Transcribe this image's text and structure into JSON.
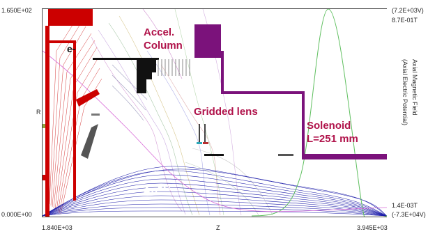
{
  "axes": {
    "y_top": "1.650E+02",
    "y_bottom": "0.000E+00",
    "y_label": "R",
    "x_left": "1.840E+03",
    "x_right": "3.945E+03",
    "x_label": "Z",
    "right_top_1": "(7.2E+03V)",
    "right_top_2": "8.7E-01T",
    "right_bottom_1": "1.4E-03T",
    "right_bottom_2": "(-7.3E+04V)",
    "right_vertical_1": "Axial Magnetic Field",
    "right_vertical_2": "(Axial Electric Potential)"
  },
  "annotations": {
    "electron": "e-",
    "accel_line1": "Accel.",
    "accel_line2": "Column",
    "gridded_lens": "Gridded lens",
    "solenoid_line1": "Solenoid",
    "solenoid_line2": "L=251 mm",
    "ion_base": "Au",
    "ion_charge": "+32"
  },
  "colors": {
    "electrode_red": "#cc0000",
    "solenoid_purple": "#7b127b",
    "ion_beam_blue": "#1a1aa8",
    "field_green": "#5fbf5f",
    "annotation": "#b0124a"
  }
}
